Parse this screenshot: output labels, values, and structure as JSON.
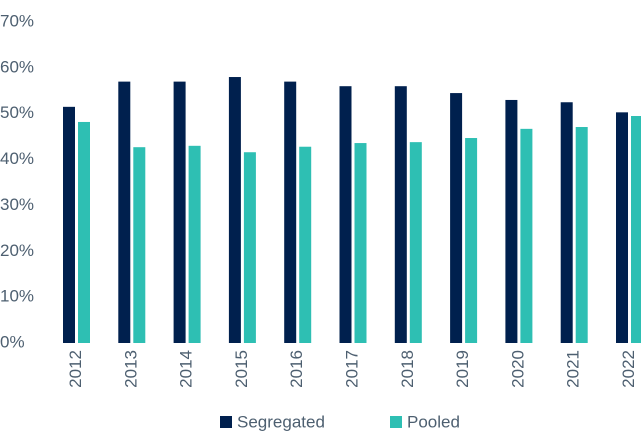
{
  "chart_data": {
    "type": "bar",
    "categories": [
      "2012",
      "2013",
      "2014",
      "2015",
      "2016",
      "2017",
      "2018",
      "2019",
      "2020",
      "2021",
      "2022"
    ],
    "series": [
      {
        "name": "Segregated",
        "color": "#00204e",
        "values": [
          51.5,
          57,
          57,
          58,
          57,
          56,
          56,
          54.5,
          53,
          52.5,
          50.3
        ]
      },
      {
        "name": "Pooled",
        "color": "#2ebfb3",
        "values": [
          48.2,
          42.7,
          43,
          41.6,
          42.8,
          43.6,
          43.8,
          44.7,
          46.7,
          47.1,
          49.5
        ]
      }
    ],
    "ylim": [
      0,
      70
    ],
    "yticks": [
      {
        "value": 0,
        "label": "0%"
      },
      {
        "value": 10,
        "label": "10%"
      },
      {
        "value": 20,
        "label": "20%"
      },
      {
        "value": 30,
        "label": "30%"
      },
      {
        "value": 40,
        "label": "40%"
      },
      {
        "value": 50,
        "label": "50%"
      },
      {
        "value": 60,
        "label": "60%"
      },
      {
        "value": 70,
        "label": "70%"
      }
    ],
    "legend": "bottom"
  }
}
